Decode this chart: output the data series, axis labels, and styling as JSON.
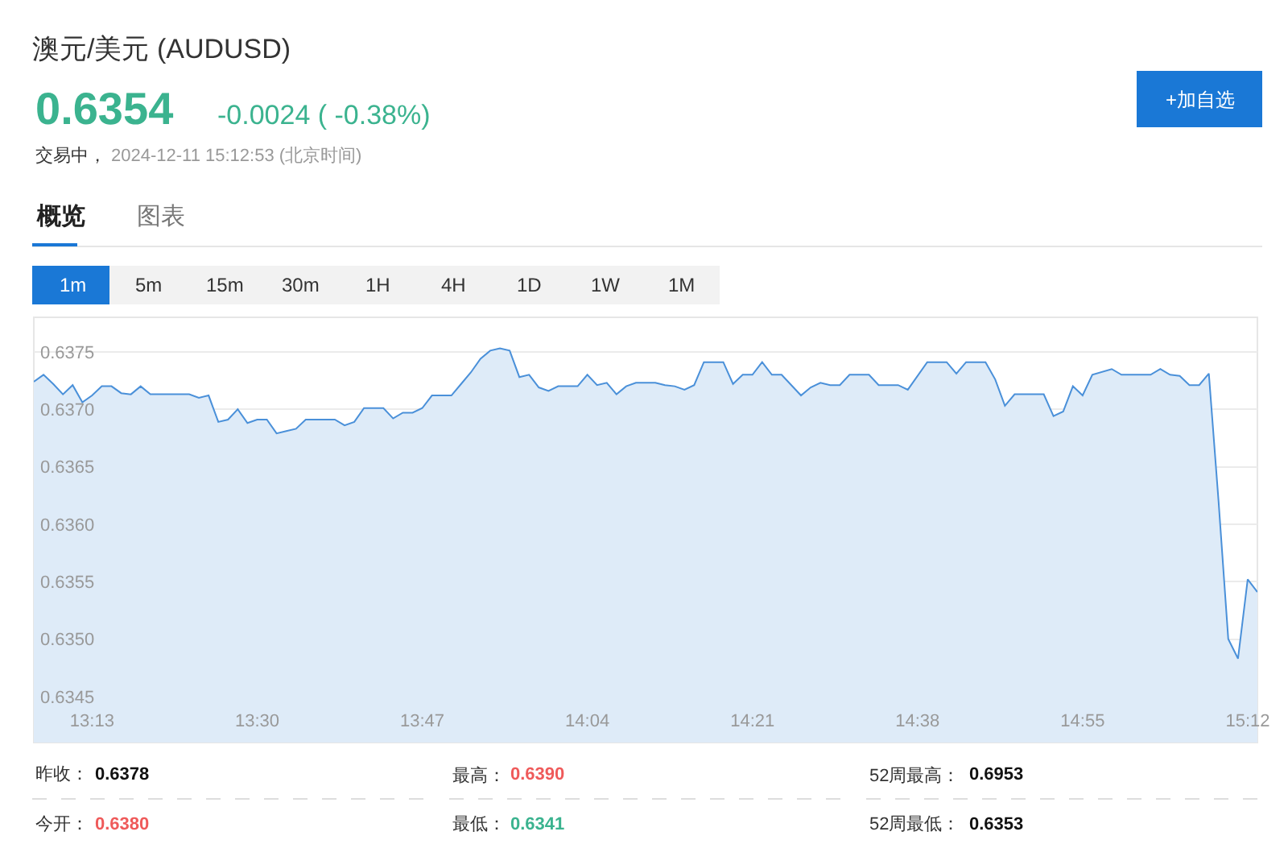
{
  "chart_data": {
    "type": "area",
    "title": "澳元/美元 (AUDUSD)",
    "x": [
      "2024-12-11T13:07",
      "2024-12-11T13:08",
      "2024-12-11T13:09",
      "2024-12-11T13:10",
      "2024-12-11T13:11",
      "2024-12-11T13:12",
      "2024-12-11T13:13",
      "2024-12-11T13:14",
      "2024-12-11T13:15",
      "2024-12-11T13:16",
      "2024-12-11T13:17",
      "2024-12-11T13:18",
      "2024-12-11T13:19",
      "2024-12-11T13:23",
      "2024-12-11T13:24",
      "2024-12-11T13:25",
      "2024-12-11T13:26",
      "2024-12-11T13:27",
      "2024-12-11T13:28",
      "2024-12-11T13:29",
      "2024-12-11T13:30",
      "2024-12-11T13:31",
      "2024-12-11T13:32",
      "2024-12-11T13:33",
      "2024-12-11T13:34",
      "2024-12-11T13:35",
      "2024-12-11T13:38",
      "2024-12-11T13:39",
      "2024-12-11T13:40",
      "2024-12-11T13:41",
      "2024-12-11T13:43",
      "2024-12-11T13:44",
      "2024-12-11T13:45",
      "2024-12-11T13:46",
      "2024-12-11T13:47",
      "2024-12-11T13:48",
      "2024-12-11T13:50",
      "2024-12-11T13:51",
      "2024-12-11T13:52",
      "2024-12-11T13:53",
      "2024-12-11T13:54",
      "2024-12-11T13:55",
      "2024-12-11T13:56",
      "2024-12-11T13:57",
      "2024-12-11T13:58",
      "2024-12-11T13:59",
      "2024-12-11T14:00",
      "2024-12-11T14:01",
      "2024-12-11T14:03",
      "2024-12-11T14:04",
      "2024-12-11T14:05",
      "2024-12-11T14:06",
      "2024-12-11T14:07",
      "2024-12-11T14:08",
      "2024-12-11T14:09",
      "2024-12-11T14:11",
      "2024-12-11T14:12",
      "2024-12-11T14:13",
      "2024-12-11T14:14",
      "2024-12-11T14:15",
      "2024-12-11T14:16",
      "2024-12-11T14:18",
      "2024-12-11T14:19",
      "2024-12-11T14:20",
      "2024-12-11T14:21",
      "2024-12-11T14:22",
      "2024-12-11T14:23",
      "2024-12-11T14:24",
      "2024-12-11T14:26",
      "2024-12-11T14:27",
      "2024-12-11T14:28",
      "2024-12-11T14:29",
      "2024-12-11T14:30",
      "2024-12-11T14:31",
      "2024-12-11T14:33",
      "2024-12-11T14:34",
      "2024-12-11T14:36",
      "2024-12-11T14:37",
      "2024-12-11T14:39",
      "2024-12-11T14:41",
      "2024-12-11T14:42",
      "2024-12-11T14:43",
      "2024-12-11T14:45",
      "2024-12-11T14:46",
      "2024-12-11T14:47",
      "2024-12-11T14:48",
      "2024-12-11T14:51",
      "2024-12-11T14:52",
      "2024-12-11T14:53",
      "2024-12-11T14:54",
      "2024-12-11T14:55",
      "2024-12-11T14:56",
      "2024-12-11T14:58",
      "2024-12-11T14:59",
      "2024-12-11T15:02",
      "2024-12-11T15:03",
      "2024-12-11T15:04",
      "2024-12-11T15:05",
      "2024-12-11T15:06",
      "2024-12-11T15:07",
      "2024-12-11T15:08",
      "2024-12-11T15:09",
      "2024-12-11T15:10",
      "2024-12-11T15:11",
      "2024-12-11T15:12",
      "2024-12-11T15:13"
    ],
    "series": [
      {
        "color": "#4a90d9",
        "values": [
          0.63724,
          0.6373,
          0.63722,
          0.63713,
          0.63721,
          0.63706,
          0.63712,
          0.6372,
          0.6372,
          0.63714,
          0.63713,
          0.6372,
          0.63713,
          0.63713,
          0.6371,
          0.63712,
          0.63689,
          0.63691,
          0.637,
          0.63688,
          0.63691,
          0.63691,
          0.63679,
          0.63681,
          0.63683,
          0.63691,
          0.63691,
          0.63686,
          0.63689,
          0.63701,
          0.63701,
          0.63692,
          0.63697,
          0.63697,
          0.63701,
          0.63712,
          0.63712,
          0.63722,
          0.63732,
          0.63744,
          0.63751,
          0.63753,
          0.63751,
          0.63728,
          0.6373,
          0.63719,
          0.63716,
          0.6372,
          0.6372,
          0.6373,
          0.63721,
          0.63723,
          0.63713,
          0.6372,
          0.63723,
          0.63723,
          0.63721,
          0.6372,
          0.63717,
          0.63721,
          0.63741,
          0.63741,
          0.63722,
          0.6373,
          0.6373,
          0.63741,
          0.6373,
          0.6373,
          0.63712,
          0.63719,
          0.63723,
          0.63721,
          0.63721,
          0.6373,
          0.6373,
          0.63721,
          0.63721,
          0.63717,
          0.63741,
          0.63741,
          0.63731,
          0.63741,
          0.63741,
          0.63726,
          0.63703,
          0.63713,
          0.63713,
          0.63694,
          0.63698,
          0.6372,
          0.63712,
          0.6373,
          0.63735,
          0.6373,
          0.6373,
          0.63735,
          0.6373,
          0.63729,
          0.63721,
          0.63721,
          0.63731,
          0.6362,
          0.635,
          0.63483,
          0.63552,
          0.63541
        ]
      }
    ],
    "xlim": [
      "2024-12-11T13:07",
      "2024-12-11T15:13"
    ],
    "xticks": [
      {
        "value": "2024-12-11T13:13",
        "label": "13:13"
      },
      {
        "value": "2024-12-11T13:30",
        "label": "13:30"
      },
      {
        "value": "2024-12-11T13:47",
        "label": "13:47"
      },
      {
        "value": "2024-12-11T14:04",
        "label": "14:04"
      },
      {
        "value": "2024-12-11T14:21",
        "label": "14:21"
      },
      {
        "value": "2024-12-11T14:38",
        "label": "14:38"
      },
      {
        "value": "2024-12-11T14:55",
        "label": "14:55"
      },
      {
        "value": "2024-12-11T15:12",
        "label": "15:12"
      }
    ],
    "ylim": [
      0.6341,
      0.6378
    ],
    "yticks": [
      0.6345,
      {
        "value": 0.635,
        "label": "0.6350"
      },
      0.6355,
      {
        "value": 0.636,
        "label": "0.6360"
      },
      0.6365,
      {
        "value": 0.637,
        "label": "0.6370"
      },
      0.6375
    ],
    "grid": "y",
    "annotations": [
      "0.6354",
      "-0.0024 ( -0.38%)",
      "交易中，",
      "2024-12-11 15:12:53 (北京时间)",
      "+加自选",
      "概览",
      "图表",
      "1m",
      "5m",
      "15m",
      "30m",
      "1H",
      "4H",
      "1D",
      "1W",
      "1M",
      "昨收：",
      "0.6378",
      "最高：",
      "0.6390",
      "52周最高：",
      "0.6953",
      "今开：",
      "0.6380",
      "最低：",
      "0.6341",
      "52周最低：",
      "0.6353"
    ]
  }
}
